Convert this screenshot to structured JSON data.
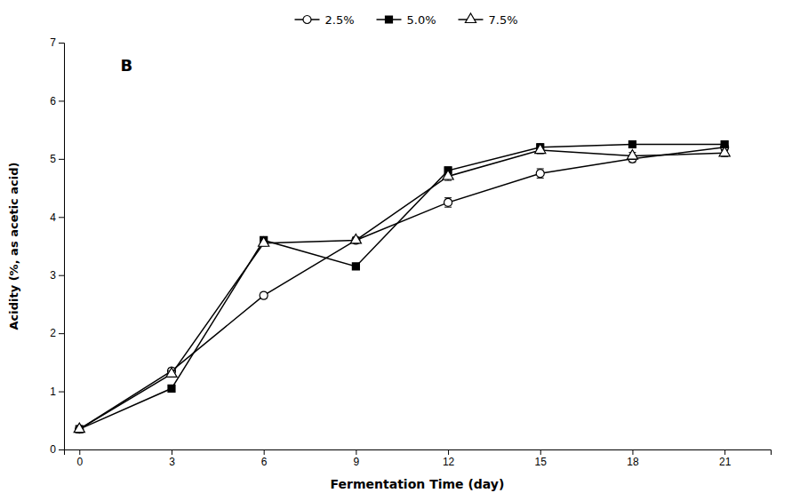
{
  "chart_data": {
    "type": "line",
    "x": [
      0,
      3,
      6,
      9,
      12,
      15,
      18,
      21
    ],
    "series": [
      {
        "name": "2.5%",
        "color": "black",
        "marker": "circle-open",
        "line_style": "solid",
        "values": [
          0.35,
          1.35,
          2.65,
          3.6,
          4.25,
          4.75,
          5.0,
          5.2
        ],
        "errors": [
          0.03,
          0.05,
          0.05,
          0.05,
          0.08,
          0.08,
          0.06,
          0.06
        ]
      },
      {
        "name": "5.0%",
        "color": "black",
        "marker": "square",
        "line_style": "solid",
        "values": [
          0.35,
          1.05,
          3.6,
          3.15,
          4.8,
          5.2,
          5.25,
          5.25
        ],
        "errors": [
          0.03,
          0.04,
          0.04,
          0.05,
          0.06,
          0.06,
          0.04,
          0.04
        ]
      },
      {
        "name": "7.5%",
        "color": "black",
        "marker": "triangle-open",
        "line_style": "solid",
        "values": [
          0.35,
          1.3,
          3.55,
          3.6,
          4.7,
          5.15,
          5.05,
          5.1
        ],
        "errors": [
          0.03,
          0.05,
          0.05,
          0.05,
          0.07,
          0.06,
          0.06,
          0.06
        ]
      }
    ],
    "x_label": "Fermentation Time (day)",
    "y_label": "Acidity (%, as acetic acid)",
    "annotations": [
      "B"
    ],
    "xlim": [
      -0.5,
      22.5
    ],
    "ylim": [
      0,
      7
    ],
    "xticks": [
      0,
      3,
      6,
      9,
      12,
      15,
      18,
      21
    ],
    "yticks": [
      0,
      1,
      2,
      3,
      4,
      5,
      6,
      7
    ],
    "grid": false,
    "legend": "top"
  }
}
